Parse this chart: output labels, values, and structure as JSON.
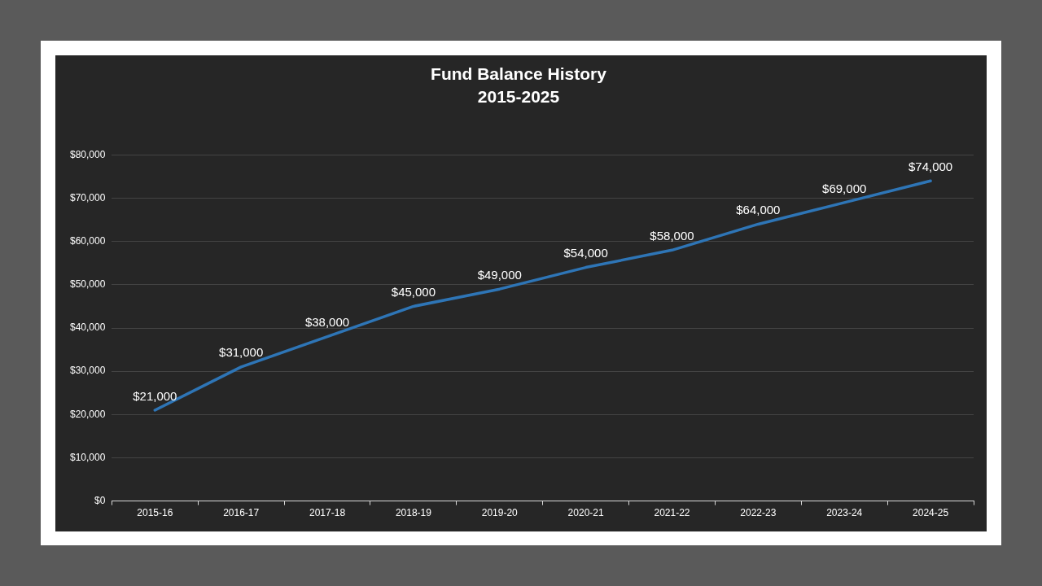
{
  "chart_data": {
    "type": "line",
    "title": "Fund Balance History",
    "subtitle": "2015-2025",
    "categories": [
      "2015-16",
      "2016-17",
      "2017-18",
      "2018-19",
      "2019-20",
      "2020-21",
      "2021-22",
      "2022-23",
      "2023-24",
      "2024-25"
    ],
    "series": [
      {
        "color": "#2e75b6",
        "values": [
          21000,
          31000,
          38000,
          45000,
          49000,
          54000,
          58000,
          64000,
          69000,
          74000
        ],
        "value_labels": [
          "$21,000",
          "$31,000",
          "$38,000",
          "$45,000",
          "$49,000",
          "$54,000",
          "$58,000",
          "$64,000",
          "$69,000",
          "$74,000"
        ]
      }
    ],
    "ylim": [
      0,
      80000
    ],
    "yticks": [
      {
        "value": 0,
        "label": "$0"
      },
      {
        "value": 10000,
        "label": "$10,000"
      },
      {
        "value": 20000,
        "label": "$20,000"
      },
      {
        "value": 30000,
        "label": "$30,000"
      },
      {
        "value": 40000,
        "label": "$40,000"
      },
      {
        "value": 50000,
        "label": "$50,000"
      },
      {
        "value": 60000,
        "label": "$60,000"
      },
      {
        "value": 70000,
        "label": "$70,000"
      },
      {
        "value": 80000,
        "label": "$80,000"
      }
    ],
    "grid": "y",
    "legend": false,
    "marker": "none",
    "line_style": "solid"
  }
}
